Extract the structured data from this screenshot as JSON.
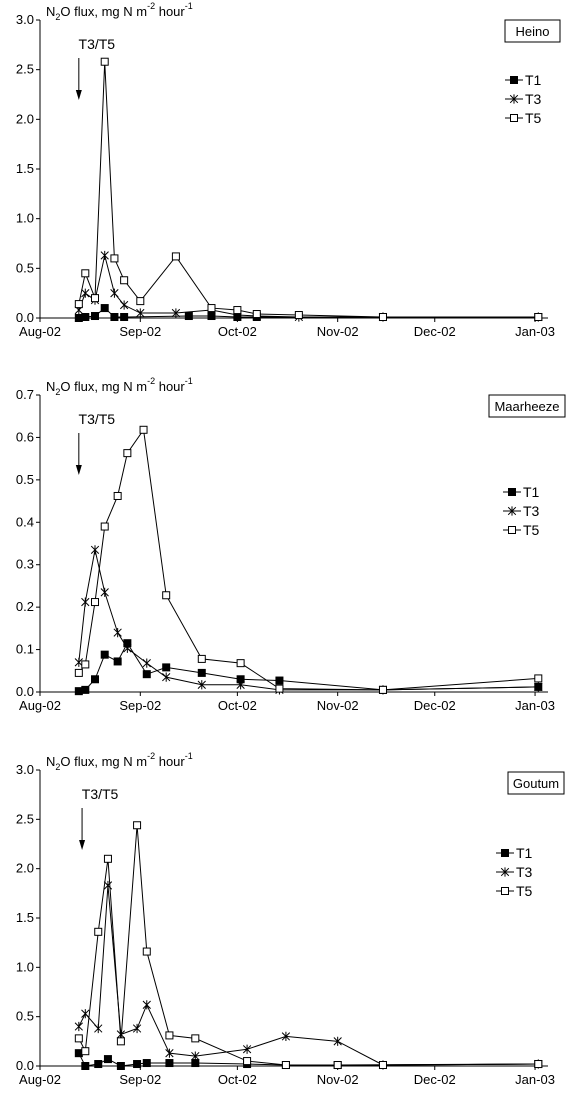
{
  "chart_data": [
    {
      "type": "line",
      "site": "Heino",
      "ylabel_parts": [
        "N",
        "2",
        "O flux, mg N m",
        "-2",
        " hour",
        "-1"
      ],
      "annotation": "T3/T5",
      "annotation_date": "2002-08-13",
      "ylim": [
        0,
        3.0
      ],
      "yticks": [
        "0.0",
        "0.5",
        "1.0",
        "1.5",
        "2.0",
        "2.5",
        "3.0"
      ],
      "ytick_values": [
        0,
        0.5,
        1.0,
        1.5,
        2.0,
        2.5,
        3.0
      ],
      "xlim": [
        "2002-08-01",
        "2003-01-05"
      ],
      "xticks": [
        {
          "date": "2002-08-01",
          "label": "Aug-02"
        },
        {
          "date": "2002-09-01",
          "label": "Sep-02"
        },
        {
          "date": "2002-10-01",
          "label": "Oct-02"
        },
        {
          "date": "2002-11-01",
          "label": "Nov-02"
        },
        {
          "date": "2002-12-01",
          "label": "Dec-02"
        },
        {
          "date": "2003-01-01",
          "label": "Jan-03"
        }
      ],
      "series": [
        {
          "name": "T1",
          "marker": "filled-square",
          "points": [
            [
              "2002-08-13",
              0.0
            ],
            [
              "2002-08-15",
              0.01
            ],
            [
              "2002-08-18",
              0.02
            ],
            [
              "2002-08-21",
              0.1
            ],
            [
              "2002-08-24",
              0.01
            ],
            [
              "2002-08-27",
              0.01
            ],
            [
              "2002-09-16",
              0.02
            ],
            [
              "2002-09-23",
              0.02
            ],
            [
              "2002-10-01",
              0.01
            ],
            [
              "2002-10-07",
              0.01
            ],
            [
              "2002-11-15",
              0.01
            ],
            [
              "2003-01-02",
              0.01
            ]
          ]
        },
        {
          "name": "T3",
          "marker": "star",
          "points": [
            [
              "2002-08-13",
              0.08
            ],
            [
              "2002-08-15",
              0.25
            ],
            [
              "2002-08-18",
              0.18
            ],
            [
              "2002-08-21",
              0.63
            ],
            [
              "2002-08-24",
              0.25
            ],
            [
              "2002-08-27",
              0.13
            ],
            [
              "2002-09-01",
              0.05
            ],
            [
              "2002-09-12",
              0.05
            ],
            [
              "2002-09-23",
              0.08
            ],
            [
              "2002-10-01",
              0.03
            ],
            [
              "2002-10-07",
              0.02
            ],
            [
              "2002-10-20",
              0.01
            ],
            [
              "2002-11-15",
              0.01
            ],
            [
              "2003-01-02",
              0.01
            ]
          ]
        },
        {
          "name": "T5",
          "marker": "open-square",
          "points": [
            [
              "2002-08-13",
              0.14
            ],
            [
              "2002-08-15",
              0.45
            ],
            [
              "2002-08-18",
              0.2
            ],
            [
              "2002-08-21",
              2.58
            ],
            [
              "2002-08-24",
              0.6
            ],
            [
              "2002-08-27",
              0.38
            ],
            [
              "2002-09-01",
              0.17
            ],
            [
              "2002-09-12",
              0.62
            ],
            [
              "2002-09-23",
              0.1
            ],
            [
              "2002-10-01",
              0.08
            ],
            [
              "2002-10-07",
              0.04
            ],
            [
              "2002-10-20",
              0.03
            ],
            [
              "2002-11-15",
              0.01
            ],
            [
              "2003-01-02",
              0.01
            ]
          ]
        }
      ]
    },
    {
      "type": "line",
      "site": "Maarheeze",
      "ylabel_parts": [
        "N",
        "2",
        "O flux, mg N m",
        "-2",
        " hour",
        "-1"
      ],
      "annotation": "T3/T5",
      "annotation_date": "2002-08-13",
      "ylim": [
        0,
        0.7
      ],
      "yticks": [
        "0.0",
        "0.1",
        "0.2",
        "0.3",
        "0.4",
        "0.5",
        "0.6",
        "0.7"
      ],
      "ytick_values": [
        0,
        0.1,
        0.2,
        0.3,
        0.4,
        0.5,
        0.6,
        0.7
      ],
      "xlim": [
        "2002-08-01",
        "2003-01-05"
      ],
      "xticks": [
        {
          "date": "2002-08-01",
          "label": "Aug-02"
        },
        {
          "date": "2002-09-01",
          "label": "Sep-02"
        },
        {
          "date": "2002-10-01",
          "label": "Oct-02"
        },
        {
          "date": "2002-11-01",
          "label": "Nov-02"
        },
        {
          "date": "2002-12-01",
          "label": "Dec-02"
        },
        {
          "date": "2003-01-01",
          "label": "Jan-03"
        }
      ],
      "series": [
        {
          "name": "T1",
          "marker": "filled-square",
          "points": [
            [
              "2002-08-13",
              0.002
            ],
            [
              "2002-08-15",
              0.005
            ],
            [
              "2002-08-18",
              0.03
            ],
            [
              "2002-08-21",
              0.088
            ],
            [
              "2002-08-25",
              0.072
            ],
            [
              "2002-08-28",
              0.115
            ],
            [
              "2002-09-03",
              0.042
            ],
            [
              "2002-09-09",
              0.058
            ],
            [
              "2002-09-20",
              0.045
            ],
            [
              "2002-10-02",
              0.03
            ],
            [
              "2002-10-14",
              0.027
            ],
            [
              "2002-11-15",
              0.005
            ],
            [
              "2003-01-02",
              0.012
            ]
          ]
        },
        {
          "name": "T3",
          "marker": "star",
          "points": [
            [
              "2002-08-13",
              0.07
            ],
            [
              "2002-08-15",
              0.212
            ],
            [
              "2002-08-18",
              0.335
            ],
            [
              "2002-08-21",
              0.235
            ],
            [
              "2002-08-25",
              0.14
            ],
            [
              "2002-08-28",
              0.103
            ],
            [
              "2002-09-03",
              0.068
            ],
            [
              "2002-09-09",
              0.035
            ],
            [
              "2002-09-20",
              0.017
            ],
            [
              "2002-10-02",
              0.017
            ],
            [
              "2002-10-14",
              0.005
            ],
            [
              "2002-11-15",
              0.005
            ],
            [
              "2003-01-02",
              0.012
            ]
          ]
        },
        {
          "name": "T5",
          "marker": "open-square",
          "points": [
            [
              "2002-08-13",
              0.045
            ],
            [
              "2002-08-15",
              0.065
            ],
            [
              "2002-08-18",
              0.212
            ],
            [
              "2002-08-21",
              0.39
            ],
            [
              "2002-08-25",
              0.462
            ],
            [
              "2002-08-28",
              0.563
            ],
            [
              "2002-09-02",
              0.618
            ],
            [
              "2002-09-09",
              0.228
            ],
            [
              "2002-09-20",
              0.078
            ],
            [
              "2002-10-02",
              0.068
            ],
            [
              "2002-10-14",
              0.008
            ],
            [
              "2002-11-15",
              0.005
            ],
            [
              "2003-01-02",
              0.032
            ]
          ]
        }
      ]
    },
    {
      "type": "line",
      "site": "Goutum",
      "ylabel_parts": [
        "N",
        "2",
        "O flux, mg N m",
        "-2",
        " hour",
        "-1"
      ],
      "annotation": "T3/T5",
      "annotation_date": "2002-08-14",
      "ylim": [
        0,
        3.0
      ],
      "yticks": [
        "0.0",
        "0.5",
        "1.0",
        "1.5",
        "2.0",
        "2.5",
        "3.0"
      ],
      "ytick_values": [
        0,
        0.5,
        1.0,
        1.5,
        2.0,
        2.5,
        3.0
      ],
      "xlim": [
        "2002-08-01",
        "2003-01-05"
      ],
      "xticks": [
        {
          "date": "2002-08-01",
          "label": "Aug-02"
        },
        {
          "date": "2002-09-01",
          "label": "Sep-02"
        },
        {
          "date": "2002-10-01",
          "label": "Oct-02"
        },
        {
          "date": "2002-11-01",
          "label": "Nov-02"
        },
        {
          "date": "2002-12-01",
          "label": "Dec-02"
        },
        {
          "date": "2003-01-01",
          "label": "Jan-03"
        }
      ],
      "series": [
        {
          "name": "T1",
          "marker": "filled-square",
          "points": [
            [
              "2002-08-13",
              0.13
            ],
            [
              "2002-08-15",
              0.0
            ],
            [
              "2002-08-19",
              0.02
            ],
            [
              "2002-08-22",
              0.07
            ],
            [
              "2002-08-26",
              0.0
            ],
            [
              "2002-08-31",
              0.02
            ],
            [
              "2002-09-03",
              0.03
            ],
            [
              "2002-09-10",
              0.03
            ],
            [
              "2002-09-18",
              0.03
            ],
            [
              "2002-10-04",
              0.02
            ],
            [
              "2002-10-16",
              0.01
            ],
            [
              "2002-11-01",
              0.01
            ],
            [
              "2003-01-02",
              0.02
            ]
          ]
        },
        {
          "name": "T3",
          "marker": "star",
          "points": [
            [
              "2002-08-13",
              0.4
            ],
            [
              "2002-08-15",
              0.53
            ],
            [
              "2002-08-19",
              0.38
            ],
            [
              "2002-08-22",
              1.83
            ],
            [
              "2002-08-26",
              0.32
            ],
            [
              "2002-08-31",
              0.38
            ],
            [
              "2002-09-03",
              0.62
            ],
            [
              "2002-09-10",
              0.13
            ],
            [
              "2002-09-18",
              0.1
            ],
            [
              "2002-10-04",
              0.17
            ],
            [
              "2002-10-16",
              0.3
            ],
            [
              "2002-11-01",
              0.25
            ],
            [
              "2002-11-15",
              0.01
            ],
            [
              "2003-01-02",
              0.02
            ]
          ]
        },
        {
          "name": "T5",
          "marker": "open-square",
          "points": [
            [
              "2002-08-13",
              0.28
            ],
            [
              "2002-08-15",
              0.15
            ],
            [
              "2002-08-19",
              1.36
            ],
            [
              "2002-08-22",
              2.1
            ],
            [
              "2002-08-26",
              0.25
            ],
            [
              "2002-08-31",
              2.44
            ],
            [
              "2002-09-03",
              1.16
            ],
            [
              "2002-09-10",
              0.31
            ],
            [
              "2002-09-18",
              0.28
            ],
            [
              "2002-10-04",
              0.05
            ],
            [
              "2002-10-16",
              0.01
            ],
            [
              "2002-11-01",
              0.01
            ],
            [
              "2002-11-15",
              0.01
            ],
            [
              "2003-01-02",
              0.02
            ]
          ]
        }
      ]
    }
  ]
}
